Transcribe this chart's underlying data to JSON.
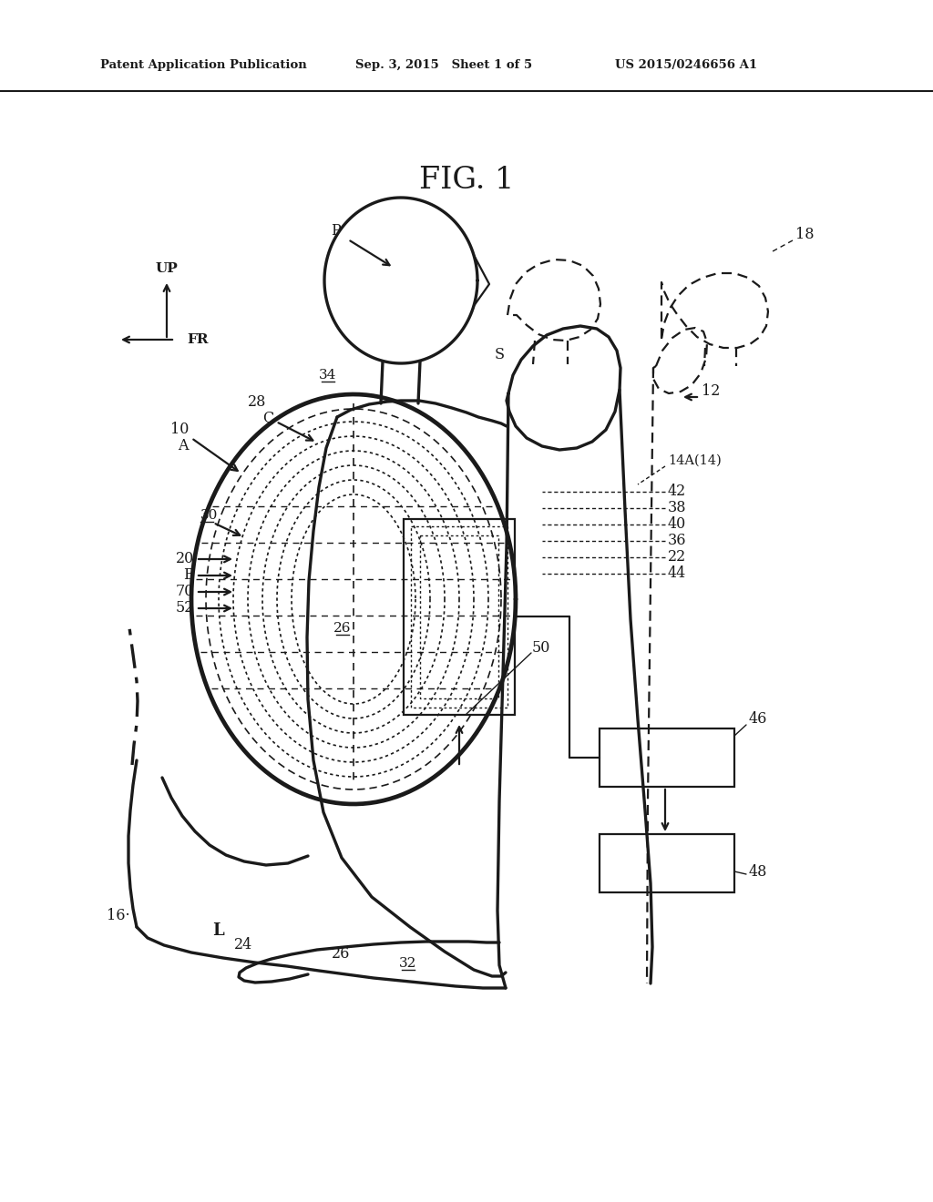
{
  "figsize": [
    10.24,
    13.2
  ],
  "dpi": 100,
  "bg_color": "#ffffff",
  "line_color": "#1a1a1a",
  "header_left": "Patent Application Publication",
  "header_mid": "Sep. 3, 2015   Sheet 1 of 5",
  "header_right": "US 2015/0246656 A1",
  "fig_title": "FIG. 1"
}
